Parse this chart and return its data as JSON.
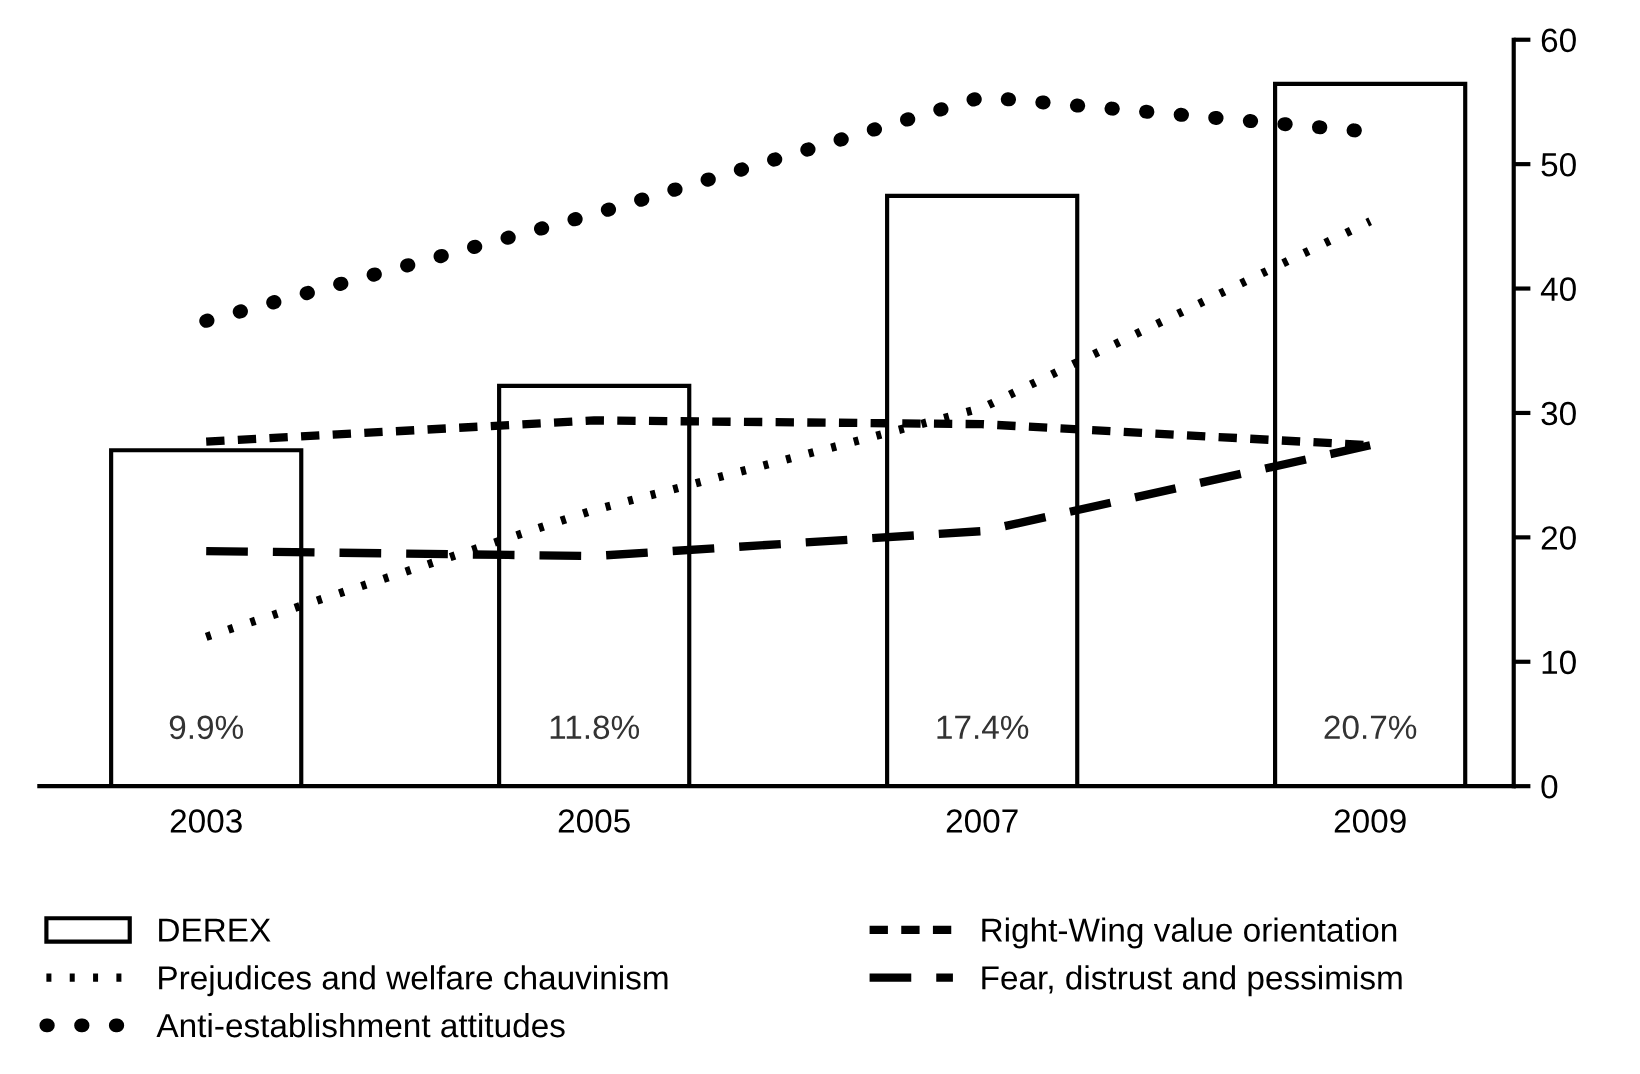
{
  "chart_data": {
    "type": "bar",
    "categories": [
      "2003",
      "2005",
      "2007",
      "2009"
    ],
    "ylim": [
      0,
      60
    ],
    "yticks": [
      0,
      10,
      20,
      30,
      40,
      50,
      60
    ],
    "y2lim": [
      0,
      22
    ],
    "grid": false,
    "legend": "bottom",
    "series": [
      {
        "name": "DEREX",
        "color": "#ffffff",
        "axis": "y2",
        "values": [
          9.9,
          11.8,
          17.4,
          20.7
        ],
        "value_labels": [
          "9.9%",
          "11.8%",
          "17.4%",
          "20.7%"
        ]
      },
      {
        "name": "Prejudices and welfare chauvinism",
        "type": "line",
        "color": "#000000",
        "line_style": "dotted",
        "values": [
          12.0,
          22.2,
          30.4,
          45.4
        ]
      },
      {
        "name": "Anti-establishment attitudes",
        "type": "line",
        "color": "#000000",
        "line_style": "dotted",
        "values": [
          37.4,
          46.0,
          55.4,
          52.6
        ]
      },
      {
        "name": "Right-Wing value orientation",
        "type": "line",
        "color": "#000000",
        "line_style": "dashed",
        "values": [
          27.7,
          29.4,
          29.1,
          27.4
        ]
      },
      {
        "name": "Fear, distrust and pessimism",
        "type": "line",
        "color": "#000000",
        "line_style": "dashed",
        "values": [
          18.9,
          18.5,
          20.5,
          27.4
        ]
      }
    ]
  }
}
